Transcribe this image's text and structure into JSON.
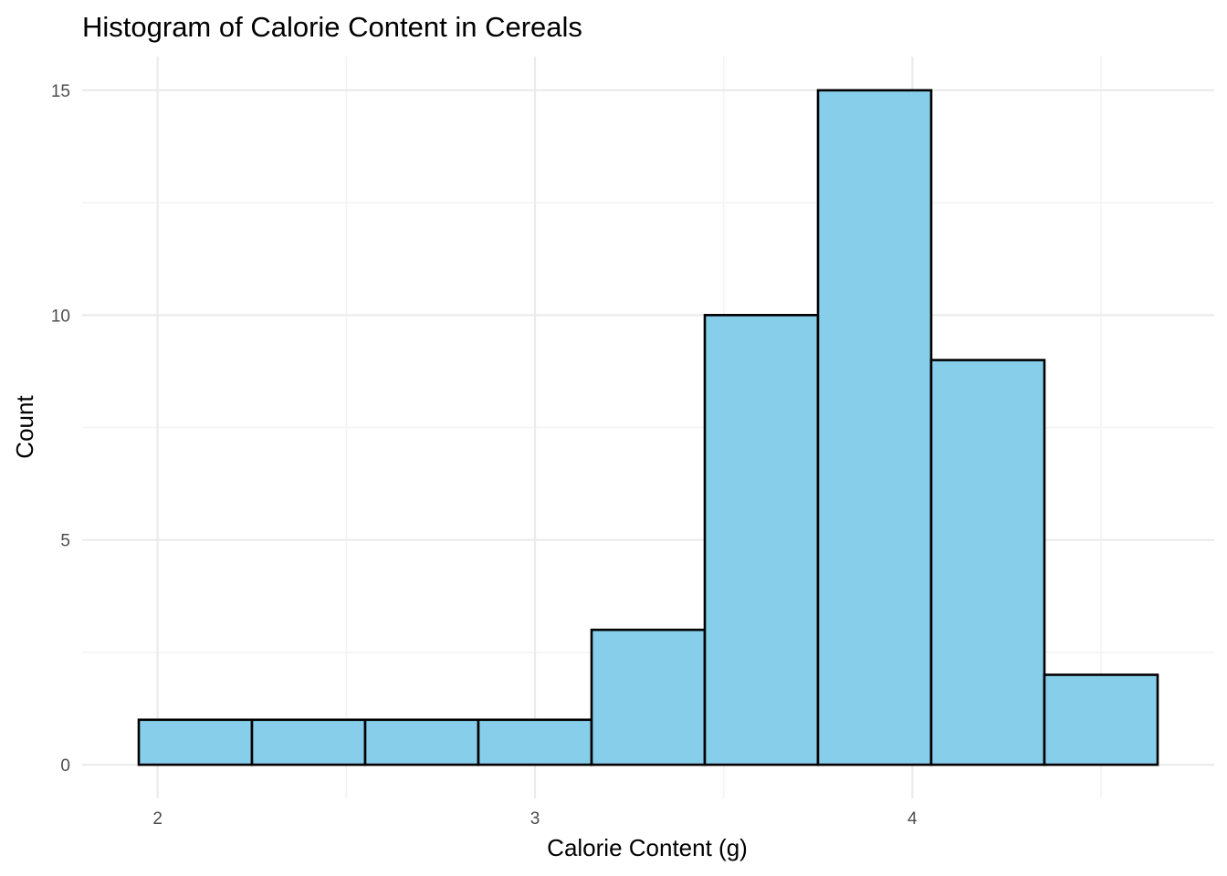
{
  "chart_data": {
    "type": "histogram",
    "title": "Histogram of Calorie Content in Cereals",
    "xlabel": "Calorie Content (g)",
    "ylabel": "Count",
    "bin_width": 0.3,
    "bins": [
      {
        "start": 1.95,
        "end": 2.25,
        "count": 1
      },
      {
        "start": 2.25,
        "end": 2.55,
        "count": 1
      },
      {
        "start": 2.55,
        "end": 2.85,
        "count": 1
      },
      {
        "start": 2.85,
        "end": 3.15,
        "count": 1
      },
      {
        "start": 3.15,
        "end": 3.45,
        "count": 3
      },
      {
        "start": 3.45,
        "end": 3.75,
        "count": 10
      },
      {
        "start": 3.75,
        "end": 4.05,
        "count": 15
      },
      {
        "start": 4.05,
        "end": 4.35,
        "count": 9
      },
      {
        "start": 4.35,
        "end": 4.65,
        "count": 2
      }
    ],
    "x_ticks": [
      2,
      3,
      4
    ],
    "y_ticks": [
      0,
      5,
      10,
      15
    ],
    "xlim": [
      1.8,
      4.8
    ],
    "ylim": [
      -0.75,
      15.75
    ],
    "grid": true,
    "colors": {
      "bar_fill": "#87ceeb",
      "bar_outline": "#000000"
    }
  }
}
